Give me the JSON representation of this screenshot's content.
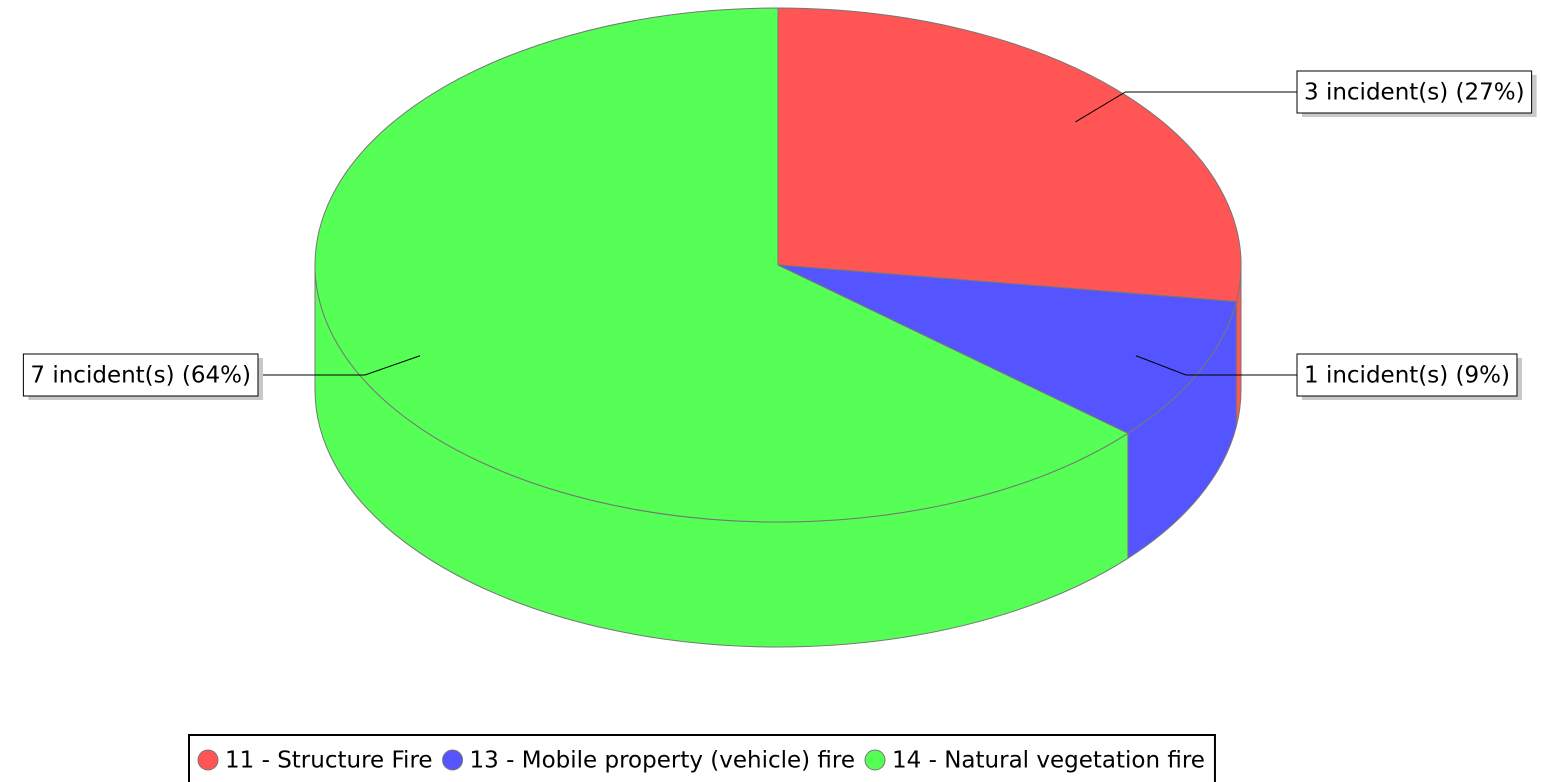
{
  "chart_data": {
    "type": "pie",
    "categories": [
      "11 - Structure Fire",
      "13 - Mobile property (vehicle) fire",
      "14 - Natural vegetation fire"
    ],
    "values": [
      3,
      1,
      7
    ],
    "value_labels": [
      "3 incident(s) (27%)",
      "1 incident(s) (9%)",
      "7 incident(s) (64%)"
    ],
    "colors": [
      "#ff5555",
      "#5555ff",
      "#55ff55"
    ]
  }
}
